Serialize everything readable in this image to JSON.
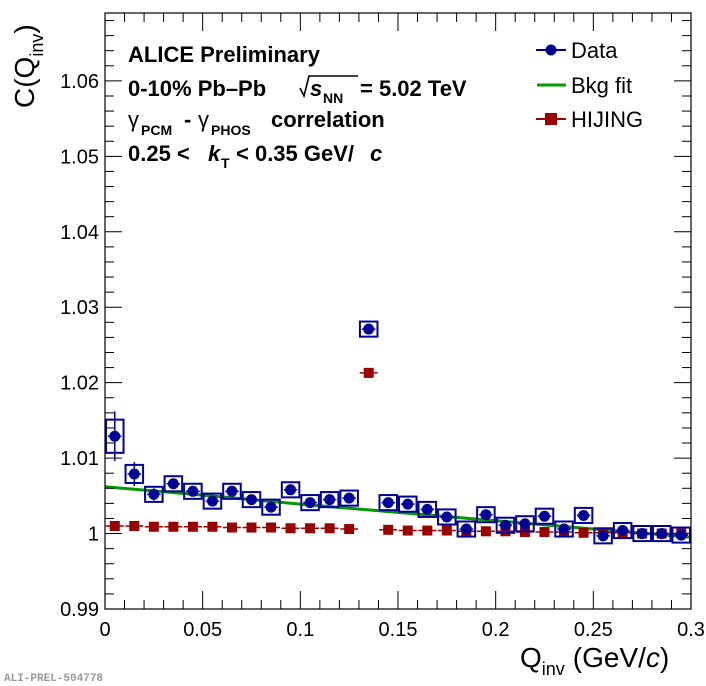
{
  "chart_data": {
    "type": "scatter",
    "title": "ALICE Preliminary",
    "annotations": {
      "line1": "ALICE Preliminary",
      "line2_system": "0-10% Pb–Pb",
      "line2_energy_var": "s",
      "line2_energy_sub": "NN",
      "line2_energy_val": "= 5.02 TeV",
      "line3_gamma": "γ",
      "line3_sub1": "PCM",
      "line3_dash": "-",
      "line3_sub2": "PHOS",
      "line3_text": "correlation",
      "line4_pre": "0.25 <",
      "line4_var": "k",
      "line4_sub": "T",
      "line4_post": "< 0.35 GeV/",
      "line4_c": "c"
    },
    "xlabel": "Q",
    "xlabel_sub": "inv",
    "xlabel_unit": "(GeV/",
    "xlabel_c": "c",
    "xlabel_close": ")",
    "ylabel": "C(Q",
    "ylabel_sub": "inv",
    "ylabel_close": ")",
    "xlim": [
      0,
      0.3
    ],
    "ylim": [
      0.99,
      1.069
    ],
    "x_ticks": [
      0,
      0.05,
      0.1,
      0.15,
      0.2,
      0.25,
      0.3
    ],
    "x_tick_labels": [
      "0",
      "0.05",
      "0.1",
      "0.15",
      "0.2",
      "0.25",
      "0.3"
    ],
    "y_ticks": [
      0.99,
      1,
      1.01,
      1.02,
      1.03,
      1.04,
      1.05,
      1.06
    ],
    "y_tick_labels": [
      "0.99",
      "1",
      "1.01",
      "1.02",
      "1.03",
      "1.04",
      "1.05",
      "1.06"
    ],
    "legend": {
      "position": "top-right",
      "entries": [
        "Data",
        "Bkg fit",
        "HIJING"
      ]
    },
    "series": [
      {
        "name": "Data",
        "color": "#000099",
        "x": [
          0.005,
          0.015,
          0.025,
          0.035,
          0.045,
          0.055,
          0.065,
          0.075,
          0.085,
          0.095,
          0.105,
          0.115,
          0.125,
          0.135,
          0.145,
          0.155,
          0.165,
          0.175,
          0.185,
          0.195,
          0.205,
          0.215,
          0.225,
          0.235,
          0.245,
          0.255,
          0.265,
          0.275,
          0.285,
          0.295
        ],
        "y": [
          1.0129,
          1.0079,
          1.0052,
          1.0066,
          1.0056,
          1.0043,
          1.0056,
          1.0045,
          1.0035,
          1.0058,
          1.0041,
          1.0045,
          1.0047,
          1.0271,
          1.0041,
          1.0039,
          1.0032,
          1.0022,
          1.0006,
          1.0025,
          1.0011,
          1.0013,
          1.0023,
          1.0006,
          1.0024,
          0.9997,
          1.0004,
          1.0,
          1.0,
          0.9998
        ],
        "stat_err": [
          0.0033,
          0.0016,
          0.0008,
          0.0007,
          0.0006,
          0.0005,
          0.0005,
          0.0004,
          0.0004,
          0.0004,
          0.0004,
          0.0003,
          0.0003,
          0.0003,
          0.0003,
          0.0003,
          0.0003,
          0.0003,
          0.0003,
          0.0003,
          0.0002,
          0.0002,
          0.0002,
          0.0002,
          0.0002,
          0.0002,
          0.0002,
          0.0002,
          0.0002,
          0.0002
        ],
        "sys_err": [
          0.0022,
          0.0012,
          0.001,
          0.001,
          0.001,
          0.001,
          0.001,
          0.001,
          0.001,
          0.001,
          0.001,
          0.001,
          0.001,
          0.001,
          0.001,
          0.001,
          0.001,
          0.001,
          0.001,
          0.001,
          0.001,
          0.001,
          0.001,
          0.001,
          0.001,
          0.001,
          0.001,
          0.001,
          0.001,
          0.001
        ]
      },
      {
        "name": "Bkg fit",
        "color": "#009900",
        "type": "line",
        "x": [
          0.0,
          0.05,
          0.1,
          0.15,
          0.2,
          0.25,
          0.3
        ],
        "y": [
          1.0062,
          1.0051,
          1.0039,
          1.0028,
          1.0017,
          1.0006,
          0.9995
        ]
      },
      {
        "name": "HIJING",
        "color": "#990000",
        "x": [
          0.005,
          0.015,
          0.025,
          0.035,
          0.045,
          0.055,
          0.065,
          0.075,
          0.085,
          0.095,
          0.105,
          0.115,
          0.125,
          0.135,
          0.145,
          0.155,
          0.165,
          0.175,
          0.185,
          0.195,
          0.205,
          0.215,
          0.225,
          0.235,
          0.245,
          0.255,
          0.265,
          0.275,
          0.285,
          0.295
        ],
        "y": [
          1.001,
          1.001,
          1.0009,
          1.0009,
          1.0009,
          1.0009,
          1.0008,
          1.0008,
          1.0008,
          1.0007,
          1.0007,
          1.0007,
          1.0006,
          1.0213,
          1.0005,
          1.0004,
          1.0004,
          1.0004,
          1.0003,
          1.0003,
          1.0003,
          1.0002,
          1.0002,
          1.0002,
          1.0001,
          1.0001,
          1.0001,
          1.0,
          1.0,
          1.0
        ]
      }
    ],
    "footer_label": "ALI-PREL-504778"
  }
}
